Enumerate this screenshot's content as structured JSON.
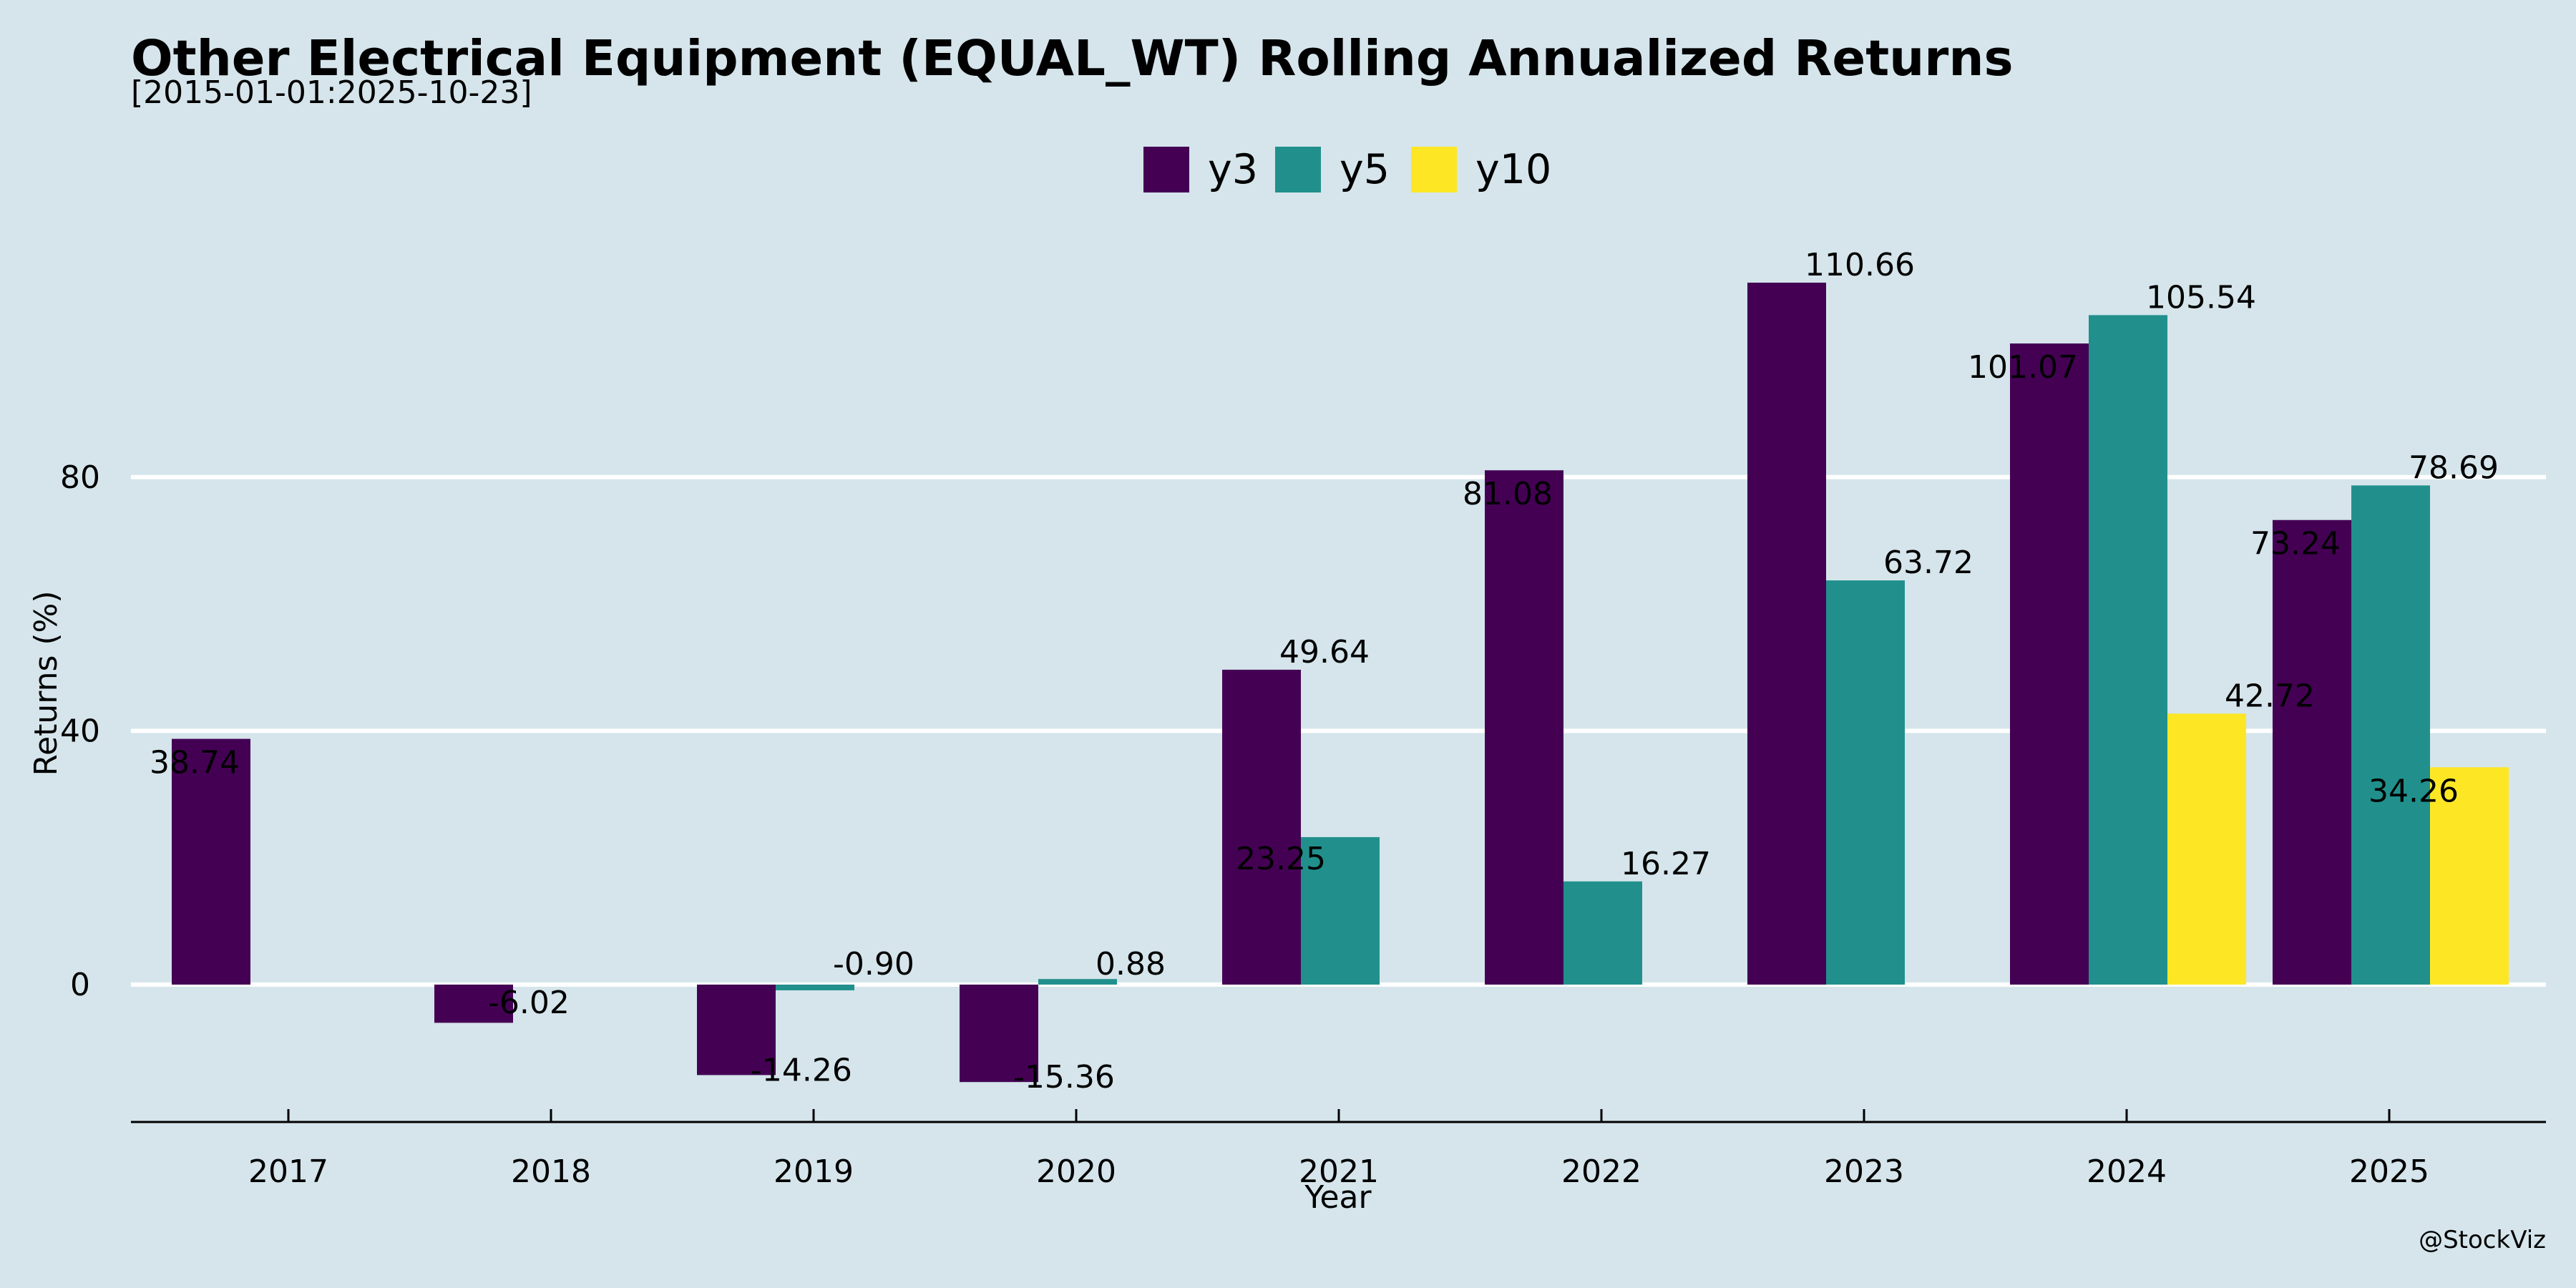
{
  "chart_data": {
    "type": "bar",
    "title": "Other Electrical Equipment (EQUAL_WT) Rolling Annualized Returns",
    "subtitle": "[2015-01-01:2025-10-23]",
    "xlabel": "Year",
    "ylabel": "Returns (%)",
    "credit": "@StockViz",
    "categories": [
      "2017",
      "2018",
      "2019",
      "2020",
      "2021",
      "2022",
      "2023",
      "2024",
      "2025"
    ],
    "series": [
      {
        "name": "y3",
        "color": "#440154",
        "values": [
          38.74,
          -6.02,
          -14.26,
          -15.36,
          49.64,
          81.08,
          110.66,
          101.07,
          73.24
        ],
        "labels": [
          "38.74",
          "-6.02",
          "-14.26",
          "-15.36",
          "49.64",
          "81.08",
          "110.66",
          "101.07",
          "73.24"
        ]
      },
      {
        "name": "y5",
        "color": "#21908c",
        "values": [
          null,
          null,
          -0.9,
          0.88,
          23.25,
          16.27,
          63.72,
          105.54,
          78.69
        ],
        "labels": [
          null,
          null,
          "-0.90",
          "0.88",
          "23.25",
          "16.27",
          "63.72",
          "105.54",
          "78.69"
        ]
      },
      {
        "name": "y10",
        "color": "#fde725",
        "values": [
          null,
          null,
          null,
          null,
          null,
          null,
          null,
          42.72,
          34.26
        ],
        "labels": [
          null,
          null,
          null,
          null,
          null,
          null,
          null,
          "42.72",
          "34.26"
        ]
      }
    ],
    "yticks": [
      0,
      40,
      80
    ],
    "ytick_labels": [
      "0",
      "40",
      "80"
    ],
    "ylim": [
      -21.5,
      125
    ],
    "grid": "horizontal",
    "legend_position": "top-center"
  }
}
